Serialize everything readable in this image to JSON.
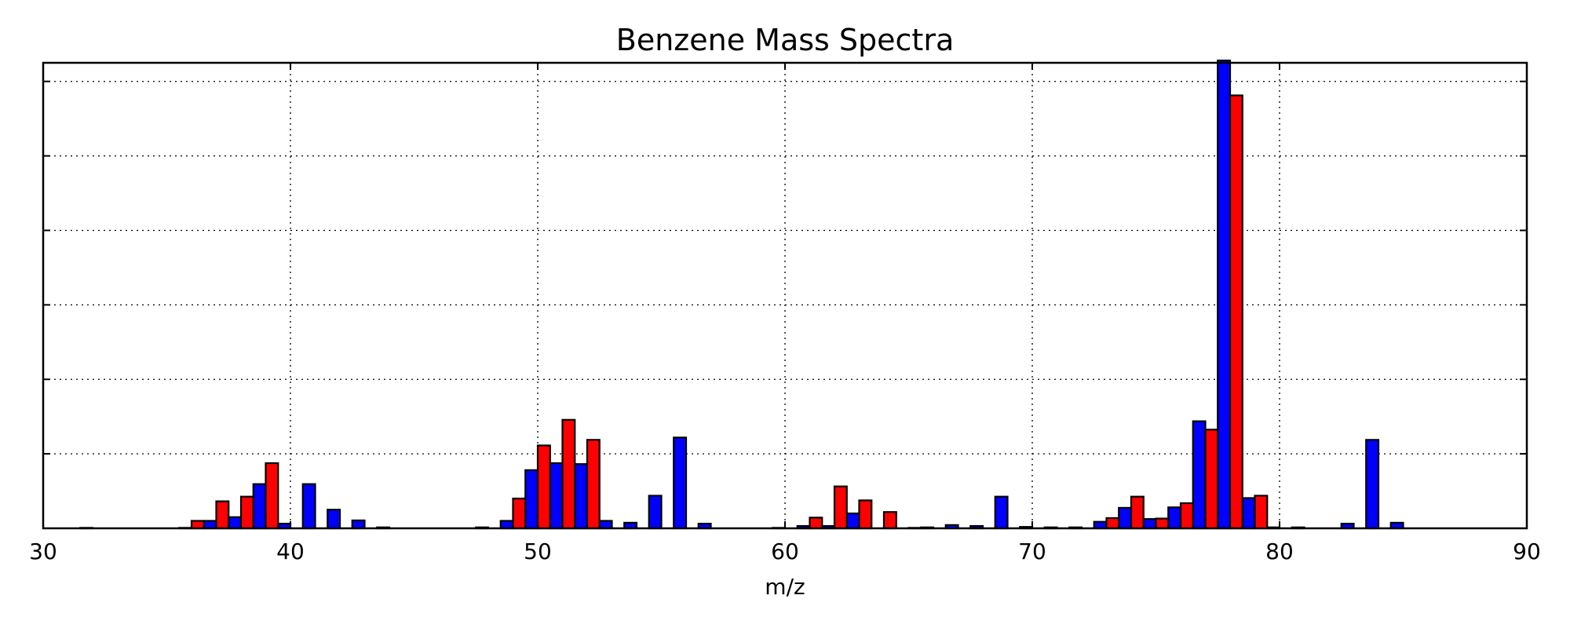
{
  "chart_data": {
    "type": "bar",
    "title": "Benzene Mass Spectra",
    "xlabel": "m/z",
    "ylabel": "",
    "xlim": [
      30,
      90
    ],
    "ylim": [
      0,
      1000
    ],
    "xticks": [
      30,
      40,
      50,
      60,
      70,
      80,
      90
    ],
    "xtick_labels": [
      "30",
      "40",
      "50",
      "60",
      "70",
      "80",
      "90"
    ],
    "yticks": [
      0,
      160,
      320,
      480,
      640,
      800,
      960
    ],
    "ytick_labels_shown": false,
    "grid": true,
    "legend": "none",
    "series": [
      {
        "color": "#0000ff",
        "offset": -0.25,
        "bar_width": 0.5,
        "x": [
          32,
          36,
          37,
          38,
          39,
          40,
          41,
          42,
          43,
          44,
          48,
          49,
          50,
          51,
          52,
          53,
          54,
          55,
          56,
          57,
          60,
          61,
          62,
          63,
          66,
          67,
          68,
          69,
          70,
          71,
          72,
          73,
          74,
          75,
          76,
          77,
          78,
          79,
          80,
          81,
          83,
          84,
          85
        ],
        "values": [
          1,
          1,
          16,
          24,
          95,
          10,
          95,
          40,
          17,
          2,
          2,
          16,
          125,
          140,
          138,
          16,
          12,
          70,
          195,
          10,
          1,
          5,
          5,
          32,
          2,
          7,
          5,
          68,
          3,
          2,
          2,
          14,
          44,
          20,
          45,
          230,
          1005,
          65,
          2,
          2,
          10,
          190,
          12
        ]
      },
      {
        "color": "#ff0000",
        "offset": 0.25,
        "bar_width": 0.5,
        "x": [
          36,
          37,
          38,
          39,
          49,
          50,
          51,
          52,
          61,
          62,
          63,
          64,
          65,
          73,
          74,
          75,
          76,
          77,
          78,
          79
        ],
        "values": [
          16,
          58,
          68,
          140,
          64,
          178,
          233,
          190,
          23,
          90,
          60,
          35,
          1,
          22,
          68,
          21,
          54,
          212,
          930,
          70
        ]
      }
    ]
  }
}
